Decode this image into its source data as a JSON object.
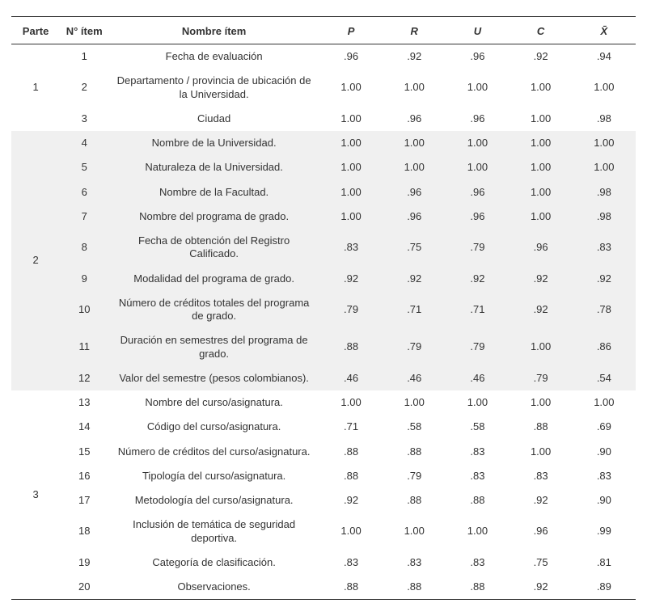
{
  "headers": {
    "parte": "Parte",
    "nitem": "N° ítem",
    "nombre": "Nombre ítem",
    "p": "P",
    "r": "R",
    "u": "U",
    "c": "C",
    "x": "X̄"
  },
  "groups": [
    {
      "part": "1",
      "shaded": false,
      "rows": [
        {
          "n": "1",
          "name": "Fecha de evaluación",
          "p": ".96",
          "r": ".92",
          "u": ".96",
          "c": ".92",
          "x": ".94"
        },
        {
          "n": "2",
          "name": "Departamento / provincia de ubicación de la Universidad.",
          "p": "1.00",
          "r": "1.00",
          "u": "1.00",
          "c": "1.00",
          "x": "1.00"
        },
        {
          "n": "3",
          "name": "Ciudad",
          "p": "1.00",
          "r": ".96",
          "u": ".96",
          "c": "1.00",
          "x": ".98"
        }
      ]
    },
    {
      "part": "2",
      "shaded": true,
      "rows": [
        {
          "n": "4",
          "name": "Nombre de la Universidad.",
          "p": "1.00",
          "r": "1.00",
          "u": "1.00",
          "c": "1.00",
          "x": "1.00"
        },
        {
          "n": "5",
          "name": "Naturaleza de la Universidad.",
          "p": "1.00",
          "r": "1.00",
          "u": "1.00",
          "c": "1.00",
          "x": "1.00"
        },
        {
          "n": "6",
          "name": "Nombre de la Facultad.",
          "p": "1.00",
          "r": ".96",
          "u": ".96",
          "c": "1.00",
          "x": ".98"
        },
        {
          "n": "7",
          "name": "Nombre del programa de grado.",
          "p": "1.00",
          "r": ".96",
          "u": ".96",
          "c": "1.00",
          "x": ".98"
        },
        {
          "n": "8",
          "name": "Fecha de obtención del Registro Calificado.",
          "p": ".83",
          "r": ".75",
          "u": ".79",
          "c": ".96",
          "x": ".83"
        },
        {
          "n": "9",
          "name": "Modalidad del programa de grado.",
          "p": ".92",
          "r": ".92",
          "u": ".92",
          "c": ".92",
          "x": ".92"
        },
        {
          "n": "10",
          "name": "Número de créditos totales del programa de grado.",
          "p": ".79",
          "r": ".71",
          "u": ".71",
          "c": ".92",
          "x": ".78"
        },
        {
          "n": "11",
          "name": "Duración en semestres del programa de grado.",
          "p": ".88",
          "r": ".79",
          "u": ".79",
          "c": "1.00",
          "x": ".86"
        },
        {
          "n": "12",
          "name": "Valor del semestre (pesos colombianos).",
          "p": ".46",
          "r": ".46",
          "u": ".46",
          "c": ".79",
          "x": ".54"
        }
      ]
    },
    {
      "part": "3",
      "shaded": false,
      "rows": [
        {
          "n": "13",
          "name": "Nombre del curso/asignatura.",
          "p": "1.00",
          "r": "1.00",
          "u": "1.00",
          "c": "1.00",
          "x": "1.00"
        },
        {
          "n": "14",
          "name": "Código del curso/asignatura.",
          "p": ".71",
          "r": ".58",
          "u": ".58",
          "c": ".88",
          "x": ".69"
        },
        {
          "n": "15",
          "name": "Número de créditos del curso/asignatura.",
          "p": ".88",
          "r": ".88",
          "u": ".83",
          "c": "1.00",
          "x": ".90"
        },
        {
          "n": "16",
          "name": "Tipología del curso/asignatura.",
          "p": ".88",
          "r": ".79",
          "u": ".83",
          "c": ".83",
          "x": ".83"
        },
        {
          "n": "17",
          "name": "Metodología del curso/asignatura.",
          "p": ".92",
          "r": ".88",
          "u": ".88",
          "c": ".92",
          "x": ".90"
        },
        {
          "n": "18",
          "name": "Inclusión de temática de seguridad deportiva.",
          "p": "1.00",
          "r": "1.00",
          "u": "1.00",
          "c": ".96",
          "x": ".99"
        },
        {
          "n": "19",
          "name": "Categoría de clasificación.",
          "p": ".83",
          "r": ".83",
          "u": ".83",
          "c": ".75",
          "x": ".81"
        },
        {
          "n": "20",
          "name": "Observaciones.",
          "p": ".88",
          "r": ".88",
          "u": ".88",
          "c": ".92",
          "x": ".89"
        }
      ]
    }
  ]
}
